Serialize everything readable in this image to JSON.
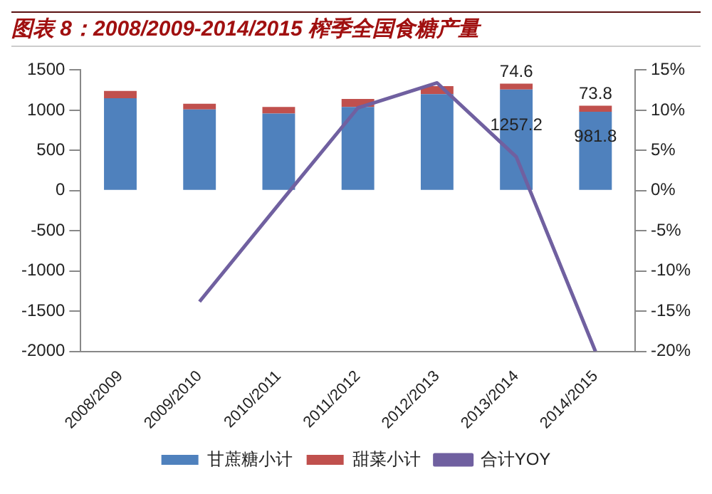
{
  "chart_data": {
    "type": "bar",
    "title": "图表 8：2008/2009-2014/2015 榨季全国食糖产量",
    "categories": [
      "2008/2009",
      "2009/2010",
      "2010/2011",
      "2011/2012",
      "2012/2013",
      "2013/2014",
      "2014/2015"
    ],
    "stacked": true,
    "series": [
      {
        "name": "甘蔗糖小计",
        "color": "#4f81bd",
        "values": [
          1150,
          1010,
          960,
          1040,
          1200,
          1257.2,
          981.8
        ],
        "value_labels": [
          null,
          null,
          null,
          null,
          null,
          "1257.2",
          "981.8"
        ]
      },
      {
        "name": "甜菜小计",
        "color": "#c0504d",
        "values": [
          90,
          70,
          80,
          100,
          100,
          74.6,
          73.8
        ],
        "value_labels": [
          null,
          null,
          null,
          null,
          null,
          "74.6",
          "73.8"
        ]
      },
      {
        "name": "合计YOY",
        "type": "line",
        "axis": "y2",
        "color": "#7060a0",
        "values": [
          null,
          -13.8,
          -1.7,
          10.3,
          13.4,
          4.2,
          -20
        ]
      }
    ],
    "ylim": [
      -2000,
      1500
    ],
    "yticks": [
      -2000,
      -1500,
      -1000,
      -500,
      0,
      500,
      1000,
      1500
    ],
    "y2lim": [
      -20,
      15
    ],
    "y2ticks": [
      {
        "value": -20,
        "label": "-20%"
      },
      {
        "value": -15,
        "label": "-15%"
      },
      {
        "value": -10,
        "label": "-10%"
      },
      {
        "value": -5,
        "label": "-5%"
      },
      {
        "value": 0,
        "label": "0%"
      },
      {
        "value": 5,
        "label": "5%"
      },
      {
        "value": 10,
        "label": "10%"
      },
      {
        "value": 15,
        "label": "15%"
      }
    ],
    "grid": false,
    "legend": "bottom",
    "marker": "none",
    "line_style": "solid"
  }
}
